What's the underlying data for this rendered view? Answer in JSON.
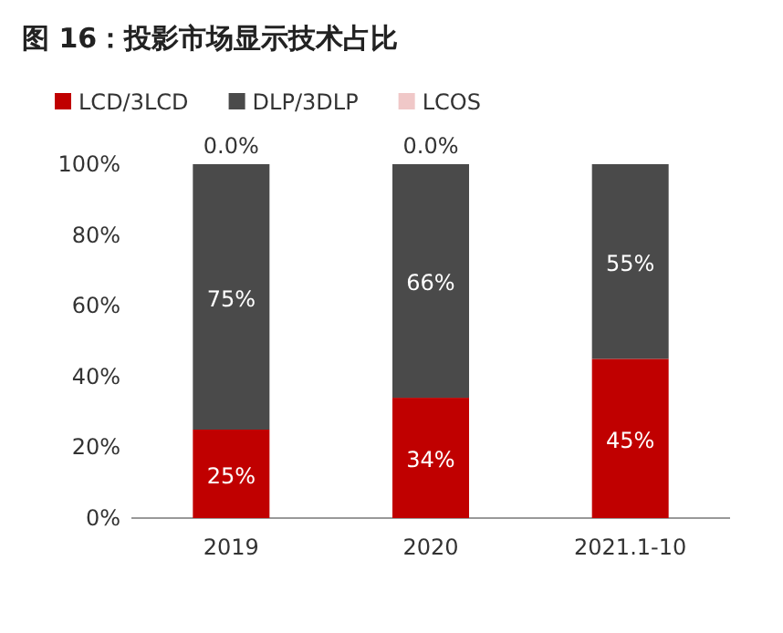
{
  "chart_data": {
    "type": "bar",
    "title": "图 16：投影市场显示技术占比",
    "stacked": true,
    "legend": "top",
    "grid": false,
    "categories": [
      "2019",
      "2020",
      "2021.1-10"
    ],
    "ylim": [
      0,
      100
    ],
    "yticks": [
      {
        "value": 0,
        "label": "0%"
      },
      {
        "value": 20,
        "label": "20%"
      },
      {
        "value": 40,
        "label": "40%"
      },
      {
        "value": 60,
        "label": "60%"
      },
      {
        "value": 80,
        "label": "80%"
      },
      {
        "value": 100,
        "label": "100%"
      }
    ],
    "series": [
      {
        "name": "LCD/3LCD",
        "color": "#c00000",
        "values": [
          25,
          34,
          45
        ],
        "value_labels": [
          "25%",
          "34%",
          "45%"
        ]
      },
      {
        "name": "DLP/3DLP",
        "color": "#4a4a4a",
        "values": [
          75,
          66,
          55
        ],
        "value_labels": [
          "75%",
          "66%",
          "55%"
        ]
      },
      {
        "name": "LCOS",
        "color": "#f0c8c8",
        "values": [
          0,
          0,
          0
        ],
        "value_labels": [
          "0.0%",
          "0.0%",
          null
        ]
      }
    ]
  }
}
